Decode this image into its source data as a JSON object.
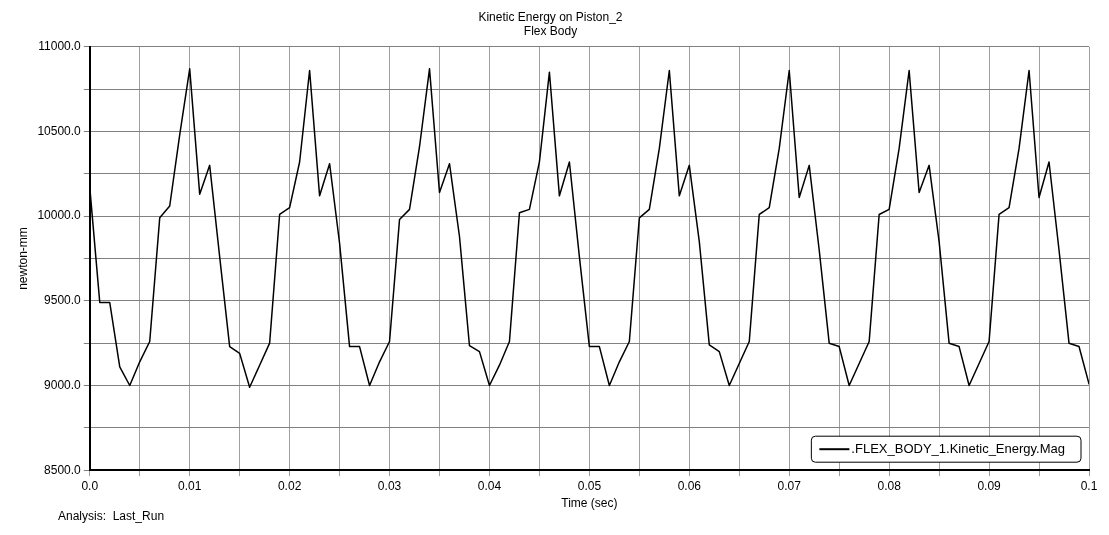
{
  "chart_data": {
    "type": "line",
    "title": "Kinetic Energy on Piston_2",
    "subtitle": "Flex Body",
    "xlabel": "Time (sec)",
    "ylabel": "newton-mm",
    "annotations": [
      "Analysis:  Last_Run"
    ],
    "x": [
      0,
      0.001,
      0.002,
      0.003,
      0.004,
      0.005,
      0.006,
      0.007,
      0.008,
      0.009,
      0.01,
      0.011,
      0.012,
      0.013,
      0.014,
      0.015,
      0.016,
      0.017,
      0.018,
      0.019,
      0.02,
      0.021,
      0.022,
      0.023,
      0.024,
      0.025,
      0.026,
      0.027,
      0.028,
      0.029,
      0.03,
      0.031,
      0.032,
      0.033,
      0.034,
      0.035,
      0.036,
      0.037,
      0.038,
      0.039,
      0.04,
      0.041,
      0.042,
      0.043,
      0.044,
      0.045,
      0.046,
      0.047,
      0.048,
      0.049,
      0.05,
      0.051,
      0.052,
      0.053,
      0.054,
      0.055,
      0.056,
      0.057,
      0.058,
      0.059,
      0.06,
      0.061,
      0.062,
      0.063,
      0.064,
      0.065,
      0.066,
      0.067,
      0.068,
      0.069,
      0.07,
      0.071,
      0.072,
      0.073,
      0.074,
      0.075,
      0.076,
      0.077,
      0.078,
      0.079,
      0.08,
      0.081,
      0.082,
      0.083,
      0.084,
      0.085,
      0.086,
      0.087,
      0.088,
      0.089,
      0.09,
      0.091,
      0.092,
      0.093,
      0.094,
      0.095,
      0.096,
      0.097,
      0.098,
      0.099,
      0.1
    ],
    "series": [
      {
        "name": ".FLEX_BODY_1.Kinetic_Energy.Mag",
        "color": "#000000",
        "values": [
          10170,
          9490,
          9490,
          9110,
          9000,
          9140,
          9260,
          9990,
          10060,
          10480,
          10870,
          10130,
          10300,
          9760,
          9230,
          9190,
          8990,
          9120,
          9250,
          10010,
          10050,
          10320,
          10860,
          10120,
          10310,
          9840,
          9230,
          9230,
          9000,
          9140,
          9260,
          9980,
          10040,
          10410,
          10870,
          10140,
          10310,
          9880,
          9235,
          9200,
          9000,
          9120,
          9260,
          10020,
          10040,
          10320,
          10850,
          10120,
          10320,
          9760,
          9230,
          9230,
          9000,
          9140,
          9260,
          9990,
          10040,
          10400,
          10860,
          10120,
          10300,
          9850,
          9240,
          9200,
          9000,
          9130,
          9260,
          10010,
          10050,
          10400,
          10860,
          10110,
          10300,
          9800,
          9250,
          9230,
          9000,
          9130,
          9260,
          10010,
          10040,
          10400,
          10860,
          10140,
          10300,
          9850,
          9250,
          9230,
          9000,
          9130,
          9260,
          10010,
          10050,
          10400,
          10860,
          10110,
          10320,
          9800,
          9250,
          9230,
          9010
        ]
      }
    ],
    "xlim": [
      0,
      0.1
    ],
    "xticks": [
      {
        "value": 0,
        "label": "0.0"
      },
      {
        "value": 0.005,
        "label": null
      },
      0.01,
      {
        "value": 0.015,
        "label": null
      },
      0.02,
      {
        "value": 0.025,
        "label": null
      },
      0.03,
      {
        "value": 0.035,
        "label": null
      },
      0.04,
      {
        "value": 0.045,
        "label": null
      },
      0.05,
      {
        "value": 0.055,
        "label": null
      },
      0.06,
      {
        "value": 0.065,
        "label": null
      },
      0.07,
      {
        "value": 0.075,
        "label": null
      },
      0.08,
      {
        "value": 0.085,
        "label": null
      },
      0.09,
      {
        "value": 0.095,
        "label": null
      },
      0.1
    ],
    "ylim": [
      8500,
      11000
    ],
    "yticks": [
      {
        "value": 8500,
        "label": "8500.0"
      },
      {
        "value": 8750,
        "label": null
      },
      {
        "value": 9000,
        "label": "9000.0"
      },
      {
        "value": 9250,
        "label": null
      },
      {
        "value": 9500,
        "label": "9500.0"
      },
      {
        "value": 9750,
        "label": null
      },
      {
        "value": 10000,
        "label": "10000.0"
      },
      {
        "value": 10250,
        "label": null
      },
      {
        "value": 10500,
        "label": "10500.0"
      },
      {
        "value": 10750,
        "label": null
      },
      {
        "value": 11000,
        "label": "11000.0"
      }
    ],
    "grid": true,
    "legend": "bottom right",
    "marker": "none",
    "line_style": "solid"
  }
}
